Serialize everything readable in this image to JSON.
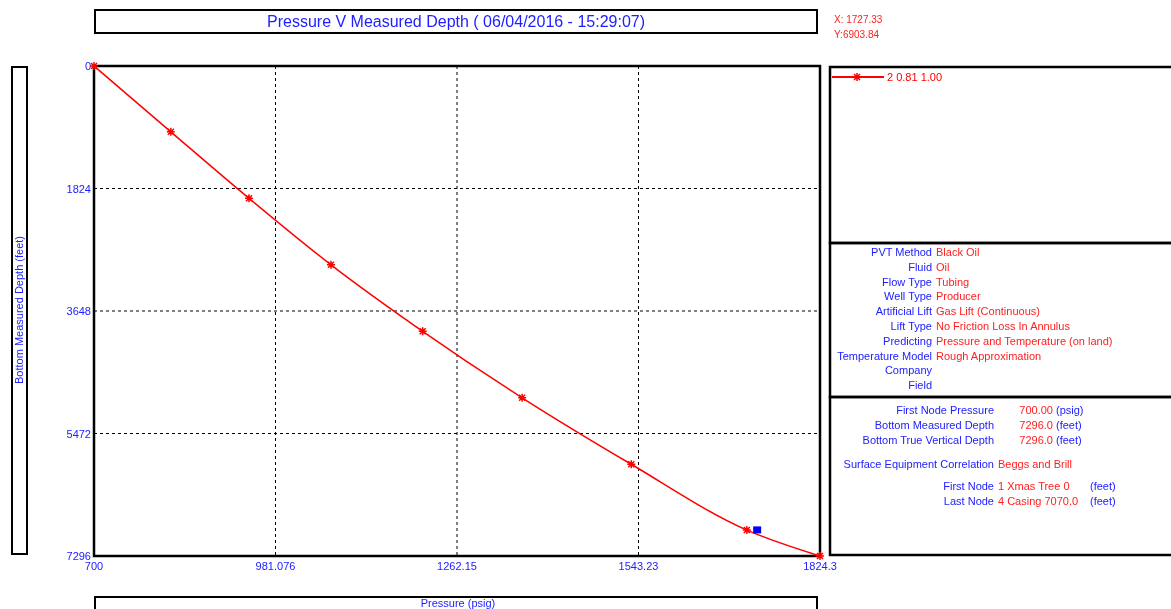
{
  "chart_data": {
    "type": "line",
    "title": "Pressure V Measured Depth ( 06/04/2016 - 15:29:07)",
    "xlabel": "Pressure  (psig)",
    "ylabel": "Bottom Measured Depth  (feet)",
    "xlim": [
      700,
      1824.3
    ],
    "xticks": [
      700,
      981.076,
      1262.15,
      1543.23,
      1824.3
    ],
    "ylim": [
      7296,
      0
    ],
    "yticks": [
      0,
      1824,
      3648,
      5472,
      7296
    ],
    "grid": true,
    "legend": "right",
    "marker": "cross",
    "line_style": "solid",
    "series": [
      {
        "name": "2 0.81 1.00",
        "color": "#ff0000",
        "x": [
          700,
          819,
          940,
          1067,
          1209,
          1363,
          1532,
          1711,
          1824.3
        ],
        "values": [
          0,
          980,
          1970,
          2960,
          3950,
          4940,
          5930,
          6910,
          7296
        ]
      },
      {
        "type": "scatter",
        "color": "#0000ff",
        "marker": "square",
        "x": [
          1727
        ],
        "values": [
          6900
        ]
      }
    ],
    "annotations": [
      "X: 1727.33",
      "Y:6903.84",
      "PVT Method",
      "Black Oil",
      "Fluid",
      "Oil",
      "Flow Type",
      "Tubing",
      "Well Type",
      "Producer",
      "Artificial Lift",
      "Gas Lift (Continuous)",
      "Lift Type",
      "No Friction Loss In Annulus",
      "Predicting",
      "Pressure and Temperature (on land)",
      "Temperature Model",
      "Rough Approximation",
      "Company",
      "Field",
      "First Node Pressure",
      "700.00",
      "(psig)",
      "Bottom Measured Depth",
      "7296.0",
      "(feet)",
      "Bottom True Vertical Depth",
      "7296.0",
      "(feet)",
      "Surface Equipment Correlation",
      "Beggs and Brill",
      "First Node",
      "1 Xmas Tree 0",
      "(feet)",
      "Last Node",
      "4 Casing 7070.0",
      "(feet)"
    ]
  }
}
